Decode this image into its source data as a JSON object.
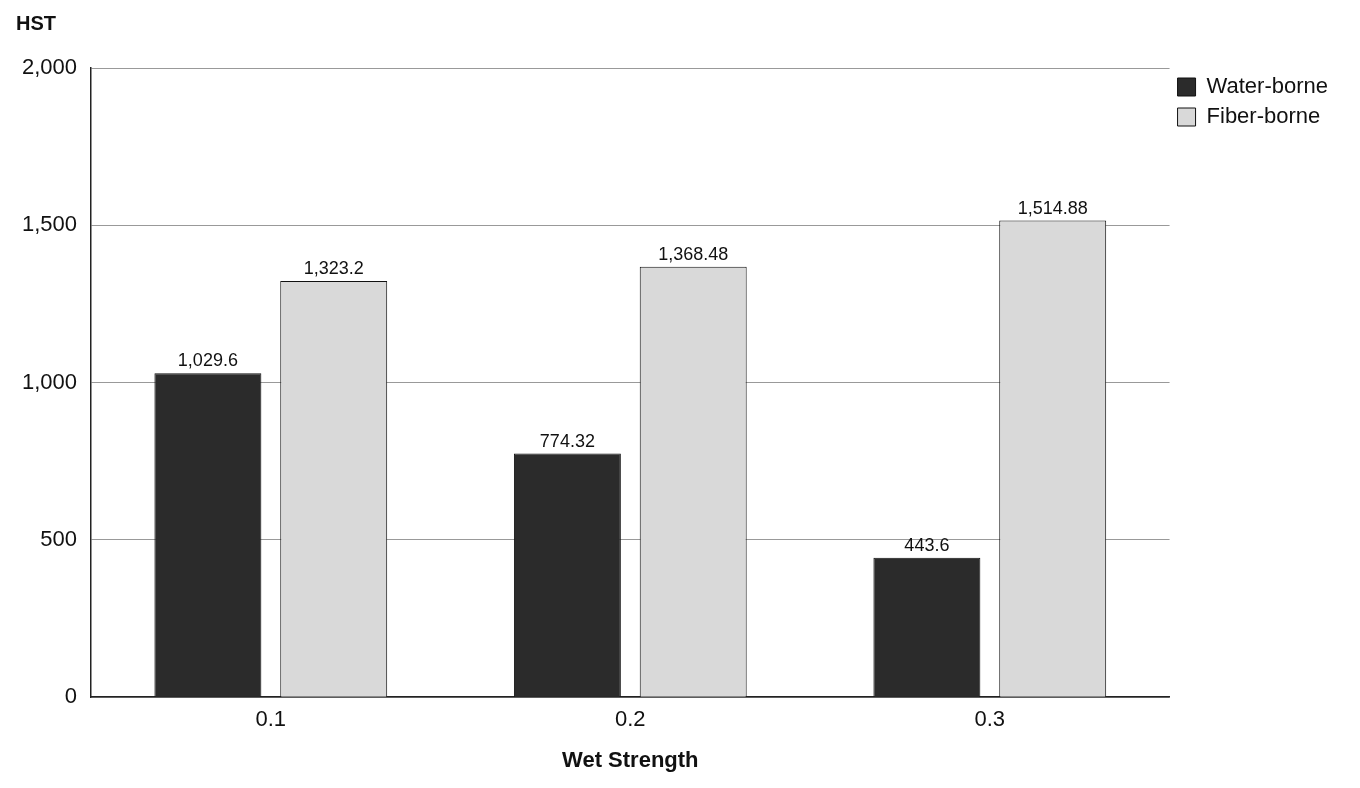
{
  "chart_data": {
    "type": "bar",
    "ylabel": "HST",
    "xlabel": "Wet Strength",
    "categories": [
      "0.1",
      "0.2",
      "0.3"
    ],
    "series": [
      {
        "name": "Water-borne",
        "color": "#2b2b2b",
        "values": [
          1029.6,
          774.32,
          443.6
        ],
        "value_labels": [
          "1,029.6",
          "774.32",
          "443.6"
        ]
      },
      {
        "name": "Fiber-borne",
        "color": "#d9d9d9",
        "values": [
          1323.2,
          1368.48,
          1514.88
        ],
        "value_labels": [
          "1,323.2",
          "1,368.48",
          "1,514.88"
        ]
      }
    ],
    "ylim": [
      0,
      2000
    ],
    "yticks": [
      0,
      500,
      {
        "value": 1000,
        "label": "1,000"
      },
      {
        "value": 1500,
        "label": "1,500"
      },
      {
        "value": 2000,
        "label": "2,000"
      }
    ],
    "grid": "y",
    "legend": "top right"
  }
}
